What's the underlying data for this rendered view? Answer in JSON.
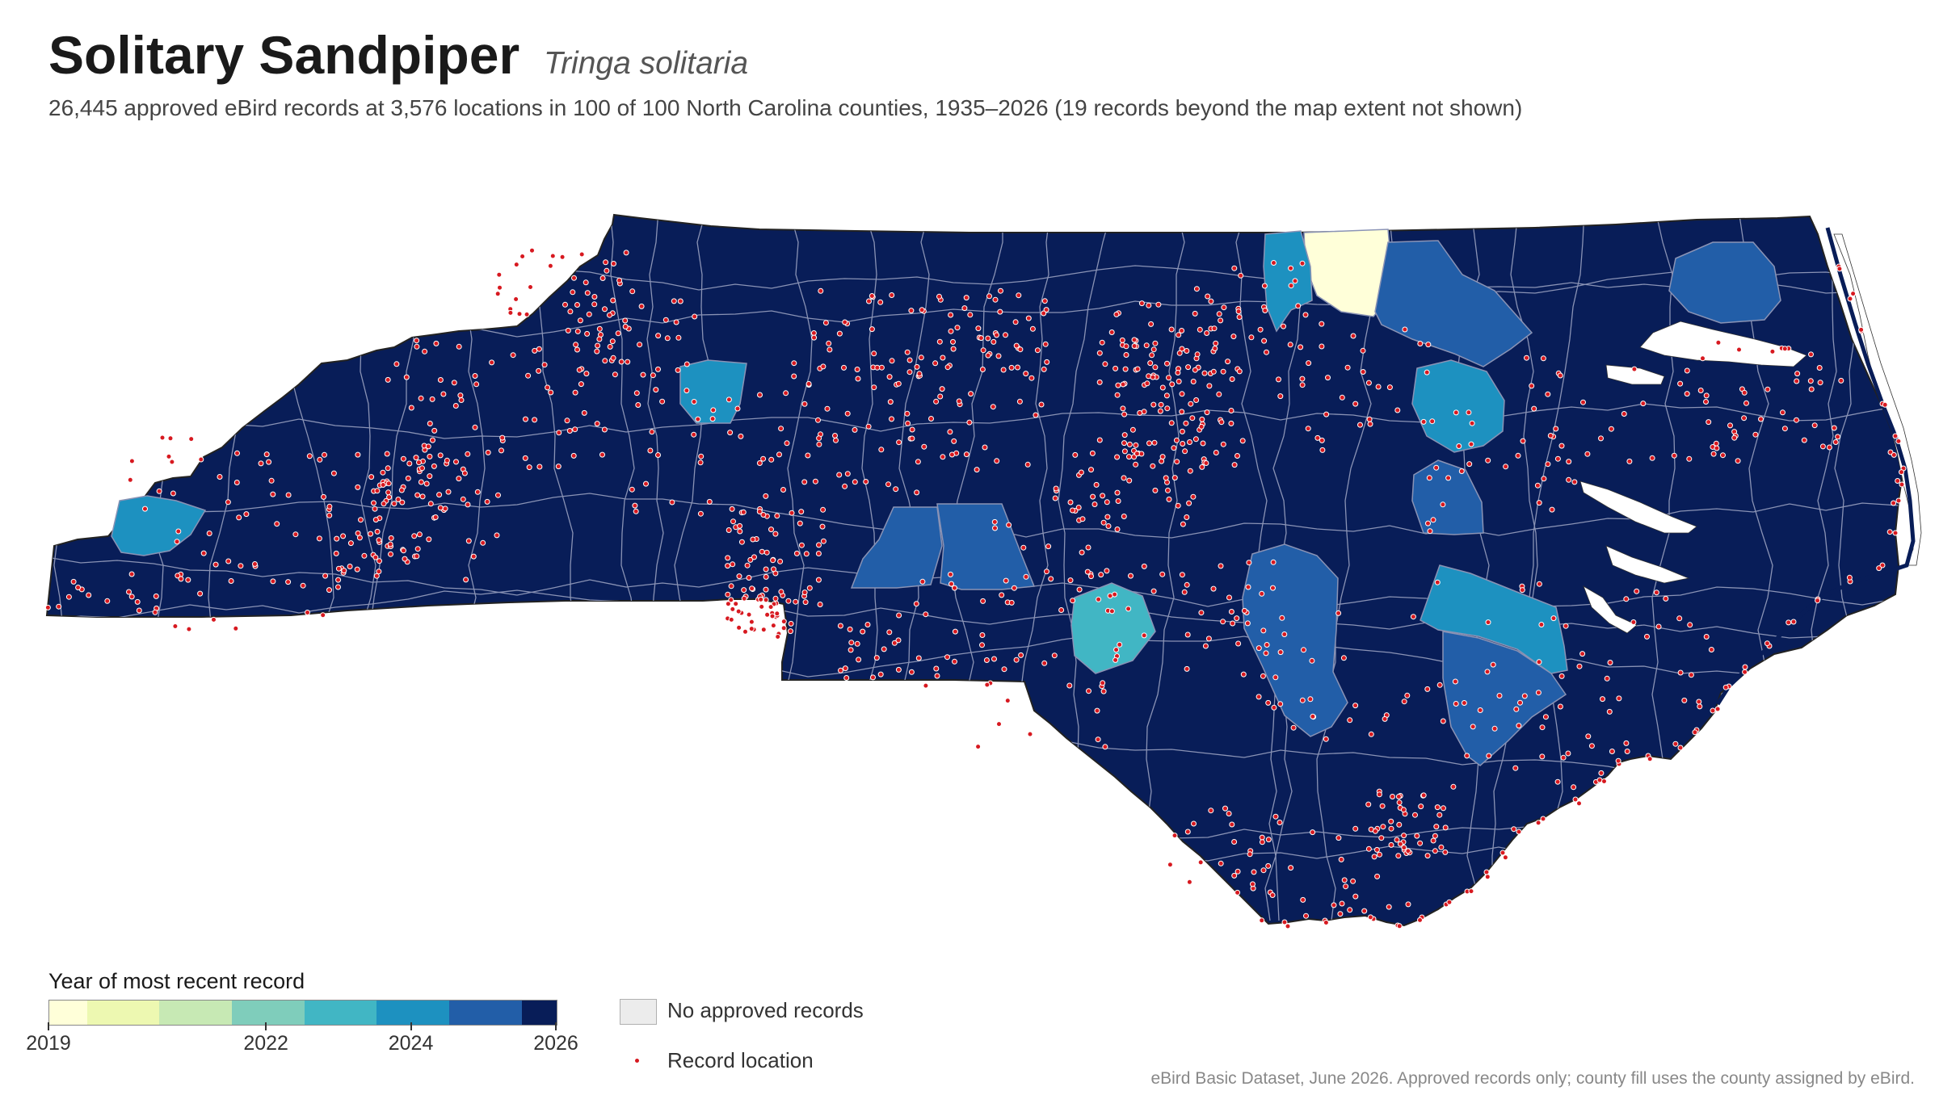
{
  "title": {
    "common_name": "Solitary Sandpiper",
    "scientific_name": "Tringa solitaria"
  },
  "subtitle": "26,445 approved eBird records at 3,576 locations in 100 of 100 North Carolina counties, 1935–2026 (19 records beyond the map extent not shown)",
  "legend": {
    "title": "Year of most recent record",
    "ramp_colors": [
      "#ffffd9",
      "#edf8b1",
      "#c7e9b4",
      "#7fcdbb",
      "#41b6c4",
      "#1d91c0",
      "#225ea8",
      "#253494",
      "#081d58"
    ],
    "ticks": [
      {
        "year": 2019,
        "label": "2019"
      },
      {
        "year": 2022,
        "label": "2022"
      },
      {
        "year": 2024,
        "label": "2024"
      },
      {
        "year": 2026,
        "label": "2026"
      }
    ],
    "no_data_label": "No approved records",
    "record_label": "Record location"
  },
  "colors": {
    "no_data": "#ececec",
    "record_dot": "#d71920",
    "county_border": "#8a93b5",
    "state_outline": "#222222"
  },
  "source_note": "eBird Basic Dataset, June 2026. Approved records only; county fill uses the county assigned by eBird.",
  "map_highlights": [
    {
      "id": "west-2024-county",
      "year": 2024
    },
    {
      "id": "foothill-2024-county",
      "year": 2024
    },
    {
      "id": "piedmont-2025-county-a",
      "year": 2025
    },
    {
      "id": "piedmont-2025-county-b",
      "year": 2025
    },
    {
      "id": "south-central-2023-county",
      "year": 2023
    },
    {
      "id": "north-2019-county",
      "year": 2019
    },
    {
      "id": "north-2024-county",
      "year": 2024
    },
    {
      "id": "north-2025-county",
      "year": 2025
    },
    {
      "id": "northeast-2025-county",
      "year": 2025
    },
    {
      "id": "east-2024-county",
      "year": 2024
    },
    {
      "id": "east-2025-county",
      "year": 2025
    },
    {
      "id": "coastal-2025-county-a",
      "year": 2025
    },
    {
      "id": "coastal-2024-county",
      "year": 2024
    },
    {
      "id": "coastal-2025-county-b",
      "year": 2025
    }
  ],
  "default_county_year": 2026
}
